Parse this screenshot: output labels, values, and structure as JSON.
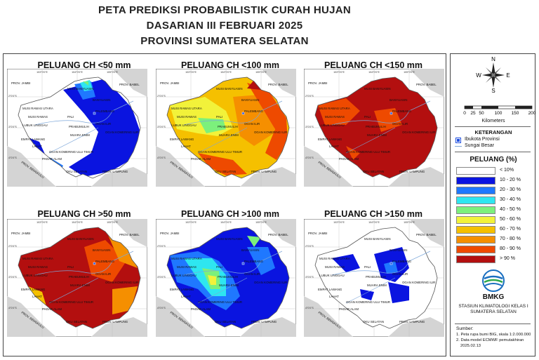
{
  "header": {
    "line1": "PETA PREDIKSI PROBABILISTIK CURAH HUJAN",
    "line2": "DASARIAN III FEBRUARI 2025",
    "line3": "PROVINSI SUMATERA SELATAN"
  },
  "panels": [
    {
      "title": "PELUANG CH <50 mm"
    },
    {
      "title": "PELUANG CH <100 mm"
    },
    {
      "title": "PELUANG CH <150 mm"
    },
    {
      "title": "PELUANG CH >50 mm"
    },
    {
      "title": "PELUANG CH >100 mm"
    },
    {
      "title": "PELUANG CH >150 mm"
    }
  ],
  "map_labels": {
    "prov_jambi": "PROV. JAMBI",
    "prov_babel": "PROV. BABEL",
    "prov_bengkulu": "PROV. BENGKULU",
    "prov_lampung": "PROV. LAMPUNG",
    "musi_banyuasin": "MUSI BANYUASIN",
    "banyuasin": "BANYUASIN",
    "musi_rawas_utara": "MUSI RAWAS UTARA",
    "musi_rawas": "MUSI RAWAS",
    "lubuk_linggau": "LUBUK LINGGAU",
    "pali": "PALI",
    "palembang": "PALEMBANG",
    "prabumulih": "PRABUMULIH",
    "muara_enim": "MUARA ENIM",
    "ogan_ilir": "OGAN ILIR",
    "ogan_komering_ilir": "OGAN KOMERING ILIR",
    "empat_lawang": "EMPAT LAWANG",
    "lahat": "LAHAT",
    "oku_timur": "OGAN KOMERING ULU TIMUR",
    "pagar_alam": "PAGAR ALAM",
    "oku_selatan": "OKU SELATAN",
    "lon1": "103°0'0\"E",
    "lon2": "104°0'0\"E",
    "lon3": "105°0'0\"E",
    "lon4": "106°0'0\"E",
    "lat1": "2°0'0\"S",
    "lat2": "3°0'0\"S",
    "lat3": "4°0'0\"S",
    "lat4": "5°0'0\"S"
  },
  "legend": {
    "compass": {
      "n": "N",
      "s": "S",
      "e": "E",
      "w": "W"
    },
    "scale_ticks": [
      "0",
      "25",
      "50",
      "100",
      "150",
      "200"
    ],
    "scale_unit": "Kilometers",
    "keterangan_title": "KETERANGAN",
    "ibukota": "Ibukota Provinsi",
    "sungai": "Sungai Besar",
    "peluang_title": "PELUANG (%)",
    "classes": [
      {
        "label": "< 10%",
        "color": "#ffffff"
      },
      {
        "label": "10 - 20 %",
        "color": "#0a14e0"
      },
      {
        "label": "20 - 30 %",
        "color": "#1f78ff"
      },
      {
        "label": "30 - 40 %",
        "color": "#2ee6f0"
      },
      {
        "label": "40 - 50 %",
        "color": "#7cf07c"
      },
      {
        "label": "50 - 60 %",
        "color": "#f2f23a"
      },
      {
        "label": "60 - 70 %",
        "color": "#f5c000"
      },
      {
        "label": "70 - 80 %",
        "color": "#f58f00"
      },
      {
        "label": "80 - 90 %",
        "color": "#ee4a00"
      },
      {
        "label": "> 90 %",
        "color": "#b30f0f"
      }
    ],
    "bmkg": "BMKG",
    "station_line1": "STASIUN KLIMATOLOGI KELAS I",
    "station_line2": "SUMATERA SELATAN",
    "sumber_title": "Sumber:",
    "sumber_1": "1. Peta rupa bumi BIG, skala 1:2.000.000",
    "sumber_2": "2. Data model ECMWF pemutakhiran",
    "sumber_3": "2025.02.13"
  }
}
